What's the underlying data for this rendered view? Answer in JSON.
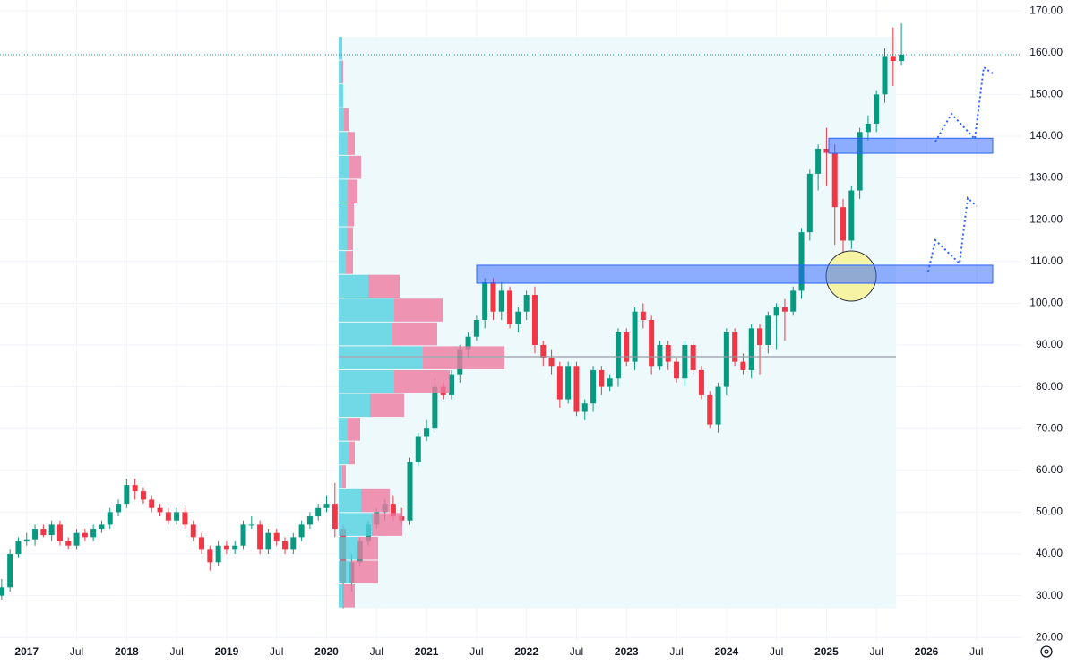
{
  "chart_data": {
    "type": "candlestick",
    "up_color": "#089981",
    "down_color": "#f23645",
    "open": [
      30,
      32,
      40,
      43,
      43.5,
      46,
      44.5,
      47,
      43,
      42,
      45,
      44,
      46,
      47,
      50,
      52,
      56.5,
      55,
      53,
      51,
      50,
      48,
      50,
      47,
      44,
      41,
      38,
      42,
      41,
      42,
      47,
      47,
      41,
      45,
      43,
      41,
      44,
      47,
      49,
      51,
      52,
      46,
      33,
      38,
      43,
      47,
      50,
      52,
      49,
      48,
      62,
      68,
      70,
      80,
      78,
      83,
      89,
      92,
      96,
      105,
      98,
      103,
      95,
      98,
      102,
      90,
      87,
      85,
      77,
      85,
      74,
      76,
      84,
      80,
      82,
      93,
      86,
      98,
      96,
      85,
      90,
      86,
      82,
      90,
      84,
      78,
      71,
      80,
      93,
      86,
      84,
      94,
      90,
      97,
      99,
      98,
      103,
      117,
      131,
      137,
      136,
      123,
      115,
      127,
      141,
      143,
      150,
      159,
      158
    ],
    "high": [
      34,
      41,
      44,
      45,
      47,
      47,
      48,
      48,
      44,
      46,
      46,
      47,
      48,
      51,
      53,
      58,
      58,
      56,
      54,
      52,
      51,
      51,
      51,
      48,
      45,
      42,
      43,
      43,
      43,
      48,
      49,
      48,
      46,
      46,
      44,
      45,
      48,
      50,
      52,
      54,
      57,
      47,
      40,
      44,
      48,
      51,
      53,
      54,
      51,
      63,
      69,
      72,
      82,
      81,
      84,
      90,
      93,
      97,
      106,
      106,
      105,
      104,
      99,
      103,
      104,
      91,
      89,
      86,
      86,
      86,
      77,
      85,
      85,
      83,
      94,
      94,
      99,
      100,
      97,
      91,
      91,
      87,
      91,
      91,
      85,
      79,
      81,
      94,
      94,
      88,
      95,
      95,
      98,
      100,
      101,
      104,
      118,
      132,
      138,
      142,
      138,
      125,
      128,
      142,
      145,
      151,
      161,
      166,
      167
    ],
    "low": [
      29,
      31,
      39,
      42,
      42,
      44,
      43,
      42,
      41,
      41,
      43,
      43,
      45,
      46,
      49,
      51,
      53,
      52,
      50,
      49,
      47,
      47,
      46,
      43,
      40,
      36,
      37,
      40,
      40,
      41,
      46,
      40,
      40,
      42,
      40,
      40,
      43,
      46,
      48,
      50,
      44,
      27,
      31,
      37,
      42,
      46,
      48,
      48,
      47,
      47,
      61,
      67,
      69,
      77,
      77,
      81,
      87,
      91,
      94,
      96,
      96,
      94,
      93,
      96,
      88,
      85,
      83,
      75,
      76,
      73,
      72,
      74,
      78,
      79,
      80,
      85,
      84,
      94,
      83,
      84,
      84,
      81,
      80,
      83,
      77,
      70,
      69,
      78,
      85,
      83,
      82,
      83,
      88,
      89,
      91,
      97,
      101,
      115,
      127,
      128,
      114,
      112,
      113,
      125,
      139,
      141,
      148,
      152,
      157
    ],
    "close": [
      32,
      40,
      43,
      43.5,
      46,
      44.5,
      47,
      43,
      42,
      45,
      44,
      46,
      47,
      50,
      52,
      56.5,
      55,
      53,
      51,
      50,
      48,
      50,
      47,
      44,
      41,
      38,
      42,
      41,
      42,
      47,
      47,
      41,
      45,
      43,
      41,
      44,
      47,
      49,
      51,
      52,
      46,
      33,
      38,
      43,
      47,
      50,
      52,
      49,
      48,
      62,
      68,
      70,
      80,
      78,
      83,
      89,
      92,
      96,
      105,
      98,
      103,
      95,
      98,
      102,
      90,
      87,
      85,
      77,
      85,
      74,
      76,
      84,
      80,
      82,
      93,
      86,
      98,
      96,
      85,
      90,
      86,
      82,
      90,
      84,
      78,
      71,
      80,
      93,
      86,
      84,
      94,
      90,
      97,
      99,
      98,
      103,
      117,
      131,
      137,
      136,
      123,
      115,
      127,
      141,
      143,
      150,
      159,
      158,
      159.5
    ],
    "xlim": [
      -0.2,
      122.4
    ],
    "xticks": [
      {
        "value": 3,
        "label": "2017"
      },
      {
        "value": 9,
        "label": "Jul"
      },
      {
        "value": 15,
        "label": "2018"
      },
      {
        "value": 21,
        "label": "Jul"
      },
      {
        "value": 27,
        "label": "2019"
      },
      {
        "value": 33,
        "label": "Jul"
      },
      {
        "value": 39,
        "label": "2020"
      },
      {
        "value": 45,
        "label": "Jul"
      },
      {
        "value": 51,
        "label": "2021"
      },
      {
        "value": 57,
        "label": "Jul"
      },
      {
        "value": 63,
        "label": "2022"
      },
      {
        "value": 69,
        "label": "Jul"
      },
      {
        "value": 75,
        "label": "2023"
      },
      {
        "value": 81,
        "label": "Jul"
      },
      {
        "value": 87,
        "label": "2024"
      },
      {
        "value": 93,
        "label": "Jul"
      },
      {
        "value": 99,
        "label": "2025"
      },
      {
        "value": 105,
        "label": "Jul"
      },
      {
        "value": 111,
        "label": "2026"
      },
      {
        "value": 117,
        "label": "Jul"
      }
    ],
    "ylim": [
      13.4,
      172.6
    ],
    "yticks": [
      {
        "value": 20,
        "label": "20.00"
      },
      {
        "value": 30,
        "label": "30.00"
      },
      {
        "value": 40,
        "label": "40.00"
      },
      {
        "value": 50,
        "label": "50.00"
      },
      {
        "value": 60,
        "label": "60.00"
      },
      {
        "value": 70,
        "label": "70.00"
      },
      {
        "value": 80,
        "label": "80.00"
      },
      {
        "value": 90,
        "label": "90.00"
      },
      {
        "value": 100,
        "label": "100.00"
      },
      {
        "value": 110,
        "label": "110.00"
      },
      {
        "value": 120,
        "label": "120.00"
      },
      {
        "value": 130,
        "label": "130.00"
      },
      {
        "value": 140,
        "label": "140.00"
      },
      {
        "value": 150,
        "label": "150.00"
      },
      {
        "value": 160,
        "label": "160.00"
      },
      {
        "value": 170,
        "label": "170.00"
      }
    ],
    "grid": true,
    "volume_profile": {
      "bins": [
        27,
        32.7,
        38.4,
        44.1,
        49.8,
        55.5,
        61.2,
        66.9,
        72.6,
        78.3,
        84,
        89.7,
        95.4,
        101.1,
        106.8,
        112.5,
        118.2,
        123.9,
        129.6,
        135.3,
        141,
        146.7,
        152.4,
        158.1,
        163.8
      ],
      "up": [
        6,
        14,
        22,
        37,
        25,
        4,
        12,
        10,
        35,
        62,
        94,
        60,
        62,
        33,
        8,
        9,
        10,
        10,
        12,
        10,
        6,
        5,
        3,
        4
      ],
      "down": [
        12,
        30,
        22,
        34,
        32,
        4,
        6,
        14,
        38,
        62,
        91,
        50,
        54,
        35,
        8,
        7,
        7,
        11,
        13,
        8,
        5,
        0,
        2,
        0
      ],
      "up_color": "#52d1e0",
      "down_color": "#f07aa0",
      "poc": 87.2
    },
    "zones": [
      {
        "from": 135.9,
        "to": 139.5
      },
      {
        "from": 104.8,
        "to": 109.1
      }
    ]
  }
}
